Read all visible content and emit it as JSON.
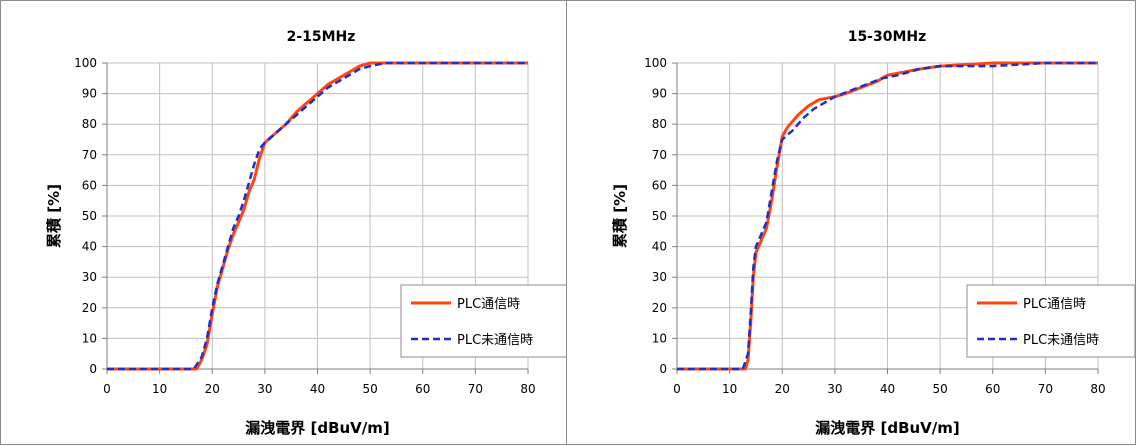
{
  "colors": {
    "plc_on": "#ff4411",
    "plc_off": "#1f2fcc",
    "grid": "#c0c0c0",
    "axis": "#7f7f7f"
  },
  "chart_data": [
    {
      "type": "line",
      "title": "2-15MHz",
      "xlabel": "漏洩電界 [dBuV/m]",
      "ylabel": "累積 [%]",
      "xlim": [
        0,
        80
      ],
      "ylim": [
        0,
        100
      ],
      "xticks": [
        "0",
        "10",
        "20",
        "30",
        "40",
        "50",
        "60",
        "70",
        "80"
      ],
      "yticks": [
        "0",
        "10",
        "20",
        "30",
        "40",
        "50",
        "60",
        "70",
        "80",
        "90",
        "100"
      ],
      "grid": true,
      "legend_position": "bottom-right",
      "series": [
        {
          "name": "PLC通信時",
          "style": "solid",
          "color": "#ff4411",
          "points": [
            [
              0,
              0
            ],
            [
              17,
              0
            ],
            [
              18,
              3
            ],
            [
              19,
              8
            ],
            [
              20,
              18
            ],
            [
              21,
              27
            ],
            [
              22,
              33
            ],
            [
              23,
              39
            ],
            [
              24,
              44
            ],
            [
              25,
              48
            ],
            [
              26,
              52
            ],
            [
              27,
              58
            ],
            [
              28,
              62
            ],
            [
              29,
              69
            ],
            [
              30,
              74
            ],
            [
              32,
              77
            ],
            [
              34,
              80
            ],
            [
              36,
              84
            ],
            [
              38,
              87
            ],
            [
              40,
              90
            ],
            [
              42,
              93
            ],
            [
              44,
              95
            ],
            [
              46,
              97
            ],
            [
              48,
              99
            ],
            [
              50,
              100
            ],
            [
              55,
              100
            ],
            [
              80,
              100
            ]
          ]
        },
        {
          "name": "PLC未通信時",
          "style": "dashed",
          "color": "#1f2fcc",
          "points": [
            [
              0,
              0
            ],
            [
              16.5,
              0
            ],
            [
              18,
              4
            ],
            [
              19,
              10
            ],
            [
              20,
              20
            ],
            [
              21,
              28
            ],
            [
              22,
              34
            ],
            [
              23,
              40
            ],
            [
              24,
              46
            ],
            [
              25,
              50
            ],
            [
              26,
              55
            ],
            [
              27,
              61
            ],
            [
              28,
              67
            ],
            [
              29,
              72
            ],
            [
              30,
              74
            ],
            [
              32,
              77
            ],
            [
              34,
              80
            ],
            [
              36,
              83
            ],
            [
              38,
              86
            ],
            [
              40,
              89
            ],
            [
              42,
              92
            ],
            [
              44,
              94
            ],
            [
              46,
              96
            ],
            [
              48,
              98
            ],
            [
              50,
              99
            ],
            [
              53,
              100
            ],
            [
              80,
              100
            ]
          ]
        }
      ]
    },
    {
      "type": "line",
      "title": "15-30MHz",
      "xlabel": "漏洩電界 [dBuV/m]",
      "ylabel": "累積 [%]",
      "xlim": [
        0,
        80
      ],
      "ylim": [
        0,
        100
      ],
      "xticks": [
        "0",
        "10",
        "20",
        "30",
        "40",
        "50",
        "60",
        "70",
        "80"
      ],
      "yticks": [
        "0",
        "10",
        "20",
        "30",
        "40",
        "50",
        "60",
        "70",
        "80",
        "90",
        "100"
      ],
      "grid": true,
      "legend_position": "bottom-right",
      "series": [
        {
          "name": "PLC通信時",
          "style": "solid",
          "color": "#ff4411",
          "points": [
            [
              0,
              0
            ],
            [
              13,
              0
            ],
            [
              13.5,
              3
            ],
            [
              14,
              15
            ],
            [
              14.5,
              30
            ],
            [
              15,
              38
            ],
            [
              16,
              42
            ],
            [
              17,
              46
            ],
            [
              18,
              55
            ],
            [
              19,
              66
            ],
            [
              20,
              76
            ],
            [
              21,
              79
            ],
            [
              23,
              83
            ],
            [
              25,
              86
            ],
            [
              27,
              88
            ],
            [
              30,
              89
            ],
            [
              32,
              90
            ],
            [
              35,
              92
            ],
            [
              38,
              94
            ],
            [
              40,
              96
            ],
            [
              43,
              97
            ],
            [
              46,
              98
            ],
            [
              50,
              99
            ],
            [
              60,
              100
            ],
            [
              80,
              100
            ]
          ]
        },
        {
          "name": "PLC未通信時",
          "style": "dashed",
          "color": "#1f2fcc",
          "points": [
            [
              0,
              0
            ],
            [
              12.5,
              0
            ],
            [
              13.5,
              5
            ],
            [
              14,
              18
            ],
            [
              14.5,
              33
            ],
            [
              15,
              40
            ],
            [
              16,
              44
            ],
            [
              17,
              48
            ],
            [
              18,
              58
            ],
            [
              19,
              68
            ],
            [
              20,
              75
            ],
            [
              22,
              78
            ],
            [
              24,
              82
            ],
            [
              26,
              85
            ],
            [
              28,
              87
            ],
            [
              30,
              89
            ],
            [
              33,
              91
            ],
            [
              36,
              93
            ],
            [
              39,
              95
            ],
            [
              42,
              96
            ],
            [
              46,
              98
            ],
            [
              50,
              99
            ],
            [
              60,
              99
            ],
            [
              70,
              100
            ],
            [
              80,
              100
            ]
          ]
        }
      ]
    }
  ]
}
